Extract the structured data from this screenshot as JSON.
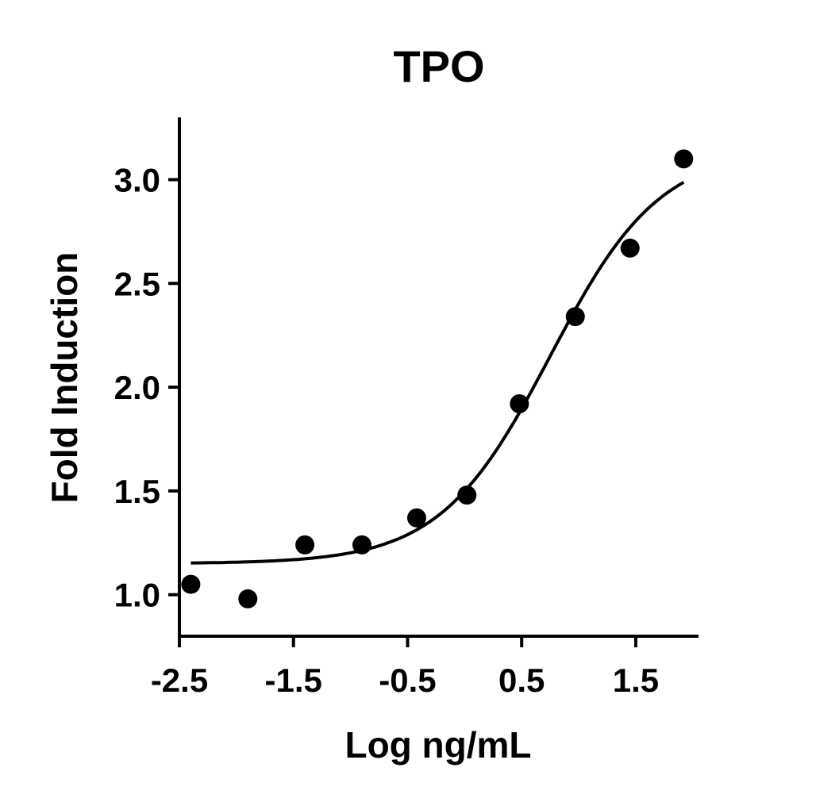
{
  "chart_data": {
    "type": "scatter",
    "title": "TPO",
    "xlabel": "Log ng/mL",
    "ylabel": "Fold Induction",
    "xlim": [
      -2.5,
      2.05
    ],
    "ylim": [
      0.8,
      3.3
    ],
    "xticks": [
      -2.5,
      -1.5,
      -0.5,
      0.5,
      1.5
    ],
    "xtick_labels": [
      "-2.5",
      "-1.5",
      "-0.5",
      "0.5",
      "1.5"
    ],
    "yticks": [
      1.0,
      1.5,
      2.0,
      2.5,
      3.0
    ],
    "ytick_labels": [
      "1.0",
      "1.5",
      "2.0",
      "2.5",
      "3.0"
    ],
    "grid": false,
    "series": [
      {
        "x": [
          -2.4,
          -1.9,
          -1.4,
          -0.9,
          -0.42,
          0.02,
          0.48,
          0.97,
          1.45,
          1.92
        ],
        "y": [
          1.05,
          0.98,
          1.24,
          1.24,
          1.37,
          1.48,
          1.92,
          2.34,
          2.67,
          3.1
        ],
        "color": "#000000"
      }
    ],
    "fit": {
      "type": "four-parameter-logistic",
      "bottom": 1.15,
      "top": 3.15,
      "log_ec50": 0.75,
      "hill": 0.9,
      "x_range": [
        -2.4,
        1.92
      ],
      "color": "#000000"
    }
  }
}
